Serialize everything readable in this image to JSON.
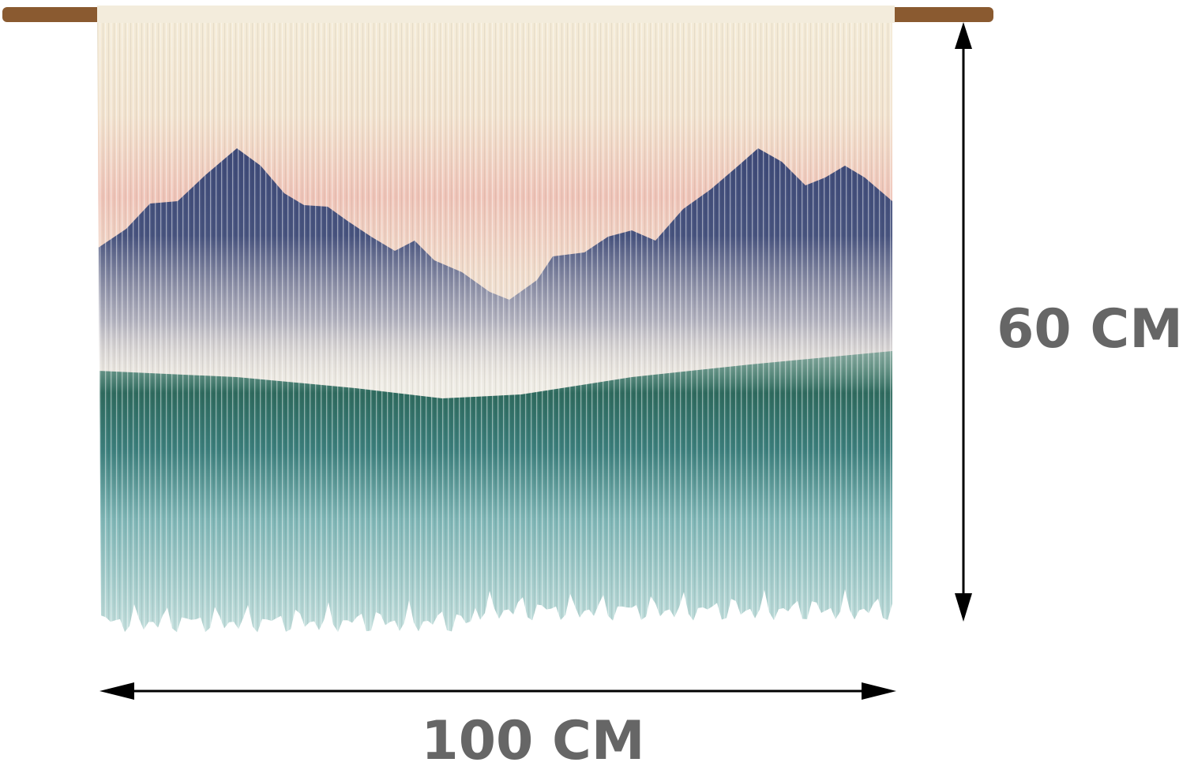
{
  "dimensions": {
    "height": "60 CM",
    "width": "100 CM"
  }
}
